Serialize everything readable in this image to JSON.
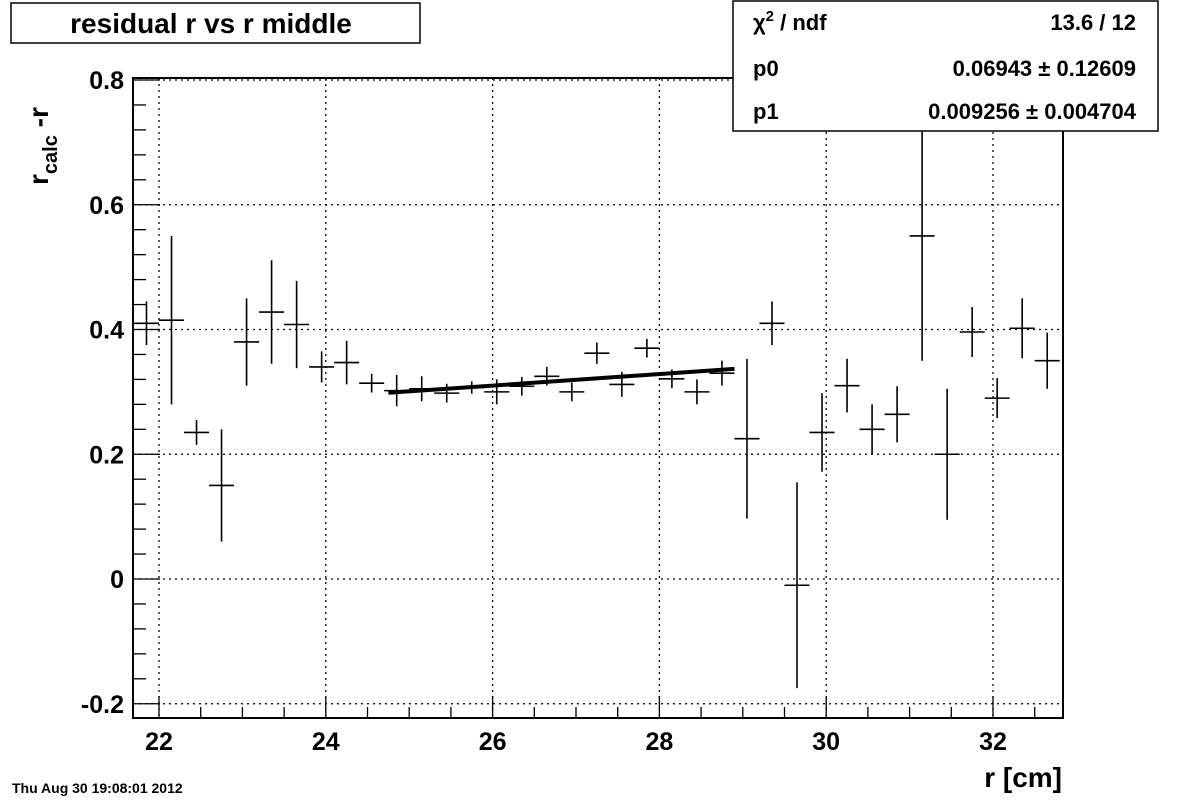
{
  "chart_data": {
    "type": "scatter",
    "title": "residual r vs r middle",
    "xlabel": "r [cm]",
    "ylabel_main": "r",
    "ylabel_sub": "calc",
    "ylabel_suffix": " -r",
    "xlim": [
      21.8,
      32.8
    ],
    "ylim": [
      -0.22,
      0.82
    ],
    "x_ticks": [
      22,
      24,
      26,
      28,
      30,
      32
    ],
    "y_ticks": [
      -0.2,
      0,
      0.2,
      0.4,
      0.6,
      0.8
    ],
    "x_tick_labels": [
      "22",
      "24",
      "26",
      "28",
      "30",
      "32"
    ],
    "y_tick_labels": [
      "-0.2",
      "0",
      "0.2",
      "0.4",
      "0.6",
      "0.8"
    ],
    "grid": true,
    "points": [
      {
        "x": 21.85,
        "y": 0.41,
        "err": 0.035
      },
      {
        "x": 22.15,
        "y": 0.415,
        "err": 0.135
      },
      {
        "x": 22.45,
        "y": 0.235,
        "err": 0.02
      },
      {
        "x": 22.75,
        "y": 0.15,
        "err": 0.09
      },
      {
        "x": 23.05,
        "y": 0.38,
        "err": 0.07
      },
      {
        "x": 23.35,
        "y": 0.428,
        "err": 0.083
      },
      {
        "x": 23.65,
        "y": 0.408,
        "err": 0.07
      },
      {
        "x": 23.95,
        "y": 0.34,
        "err": 0.025
      },
      {
        "x": 24.25,
        "y": 0.347,
        "err": 0.035
      },
      {
        "x": 24.55,
        "y": 0.314,
        "err": 0.015
      },
      {
        "x": 24.85,
        "y": 0.302,
        "err": 0.025
      },
      {
        "x": 25.15,
        "y": 0.305,
        "err": 0.02
      },
      {
        "x": 25.45,
        "y": 0.298,
        "err": 0.015
      },
      {
        "x": 25.75,
        "y": 0.307,
        "err": 0.01
      },
      {
        "x": 26.05,
        "y": 0.3,
        "err": 0.02
      },
      {
        "x": 26.35,
        "y": 0.309,
        "err": 0.015
      },
      {
        "x": 26.65,
        "y": 0.325,
        "err": 0.015
      },
      {
        "x": 26.95,
        "y": 0.3,
        "err": 0.015
      },
      {
        "x": 27.25,
        "y": 0.362,
        "err": 0.017
      },
      {
        "x": 27.55,
        "y": 0.312,
        "err": 0.02
      },
      {
        "x": 27.85,
        "y": 0.37,
        "err": 0.015
      },
      {
        "x": 28.15,
        "y": 0.321,
        "err": 0.015
      },
      {
        "x": 28.45,
        "y": 0.3,
        "err": 0.02
      },
      {
        "x": 28.75,
        "y": 0.33,
        "err": 0.02
      },
      {
        "x": 29.05,
        "y": 0.225,
        "err": 0.128
      },
      {
        "x": 29.35,
        "y": 0.41,
        "err": 0.035
      },
      {
        "x": 29.65,
        "y": -0.01,
        "err": 0.165
      },
      {
        "x": 29.95,
        "y": 0.235,
        "err": 0.063
      },
      {
        "x": 30.25,
        "y": 0.31,
        "err": 0.043
      },
      {
        "x": 30.55,
        "y": 0.24,
        "err": 0.04
      },
      {
        "x": 30.85,
        "y": 0.264,
        "err": 0.045
      },
      {
        "x": 31.15,
        "y": 0.55,
        "err": 0.2
      },
      {
        "x": 31.45,
        "y": 0.2,
        "err": 0.105
      },
      {
        "x": 31.75,
        "y": 0.396,
        "err": 0.04
      },
      {
        "x": 32.05,
        "y": 0.29,
        "err": 0.032
      },
      {
        "x": 32.35,
        "y": 0.402,
        "err": 0.048
      },
      {
        "x": 32.65,
        "y": 0.35,
        "err": 0.045
      }
    ],
    "bin_half_width": 0.15,
    "fit": {
      "p0": 0.06943,
      "p1": 0.009256,
      "x_start": 24.75,
      "x_end": 28.9
    }
  },
  "stats": {
    "chi2_label_main": "χ",
    "chi2_label_sup": "2",
    "chi2_label_rest": " / ndf",
    "chi2_value": "13.6 / 12",
    "p0_label": "p0",
    "p0_value": "0.06943 ± 0.12609",
    "p1_label": "p1",
    "p1_value": "0.009256 ± 0.004704"
  },
  "timestamp": "Thu Aug 30 19:08:01 2012"
}
